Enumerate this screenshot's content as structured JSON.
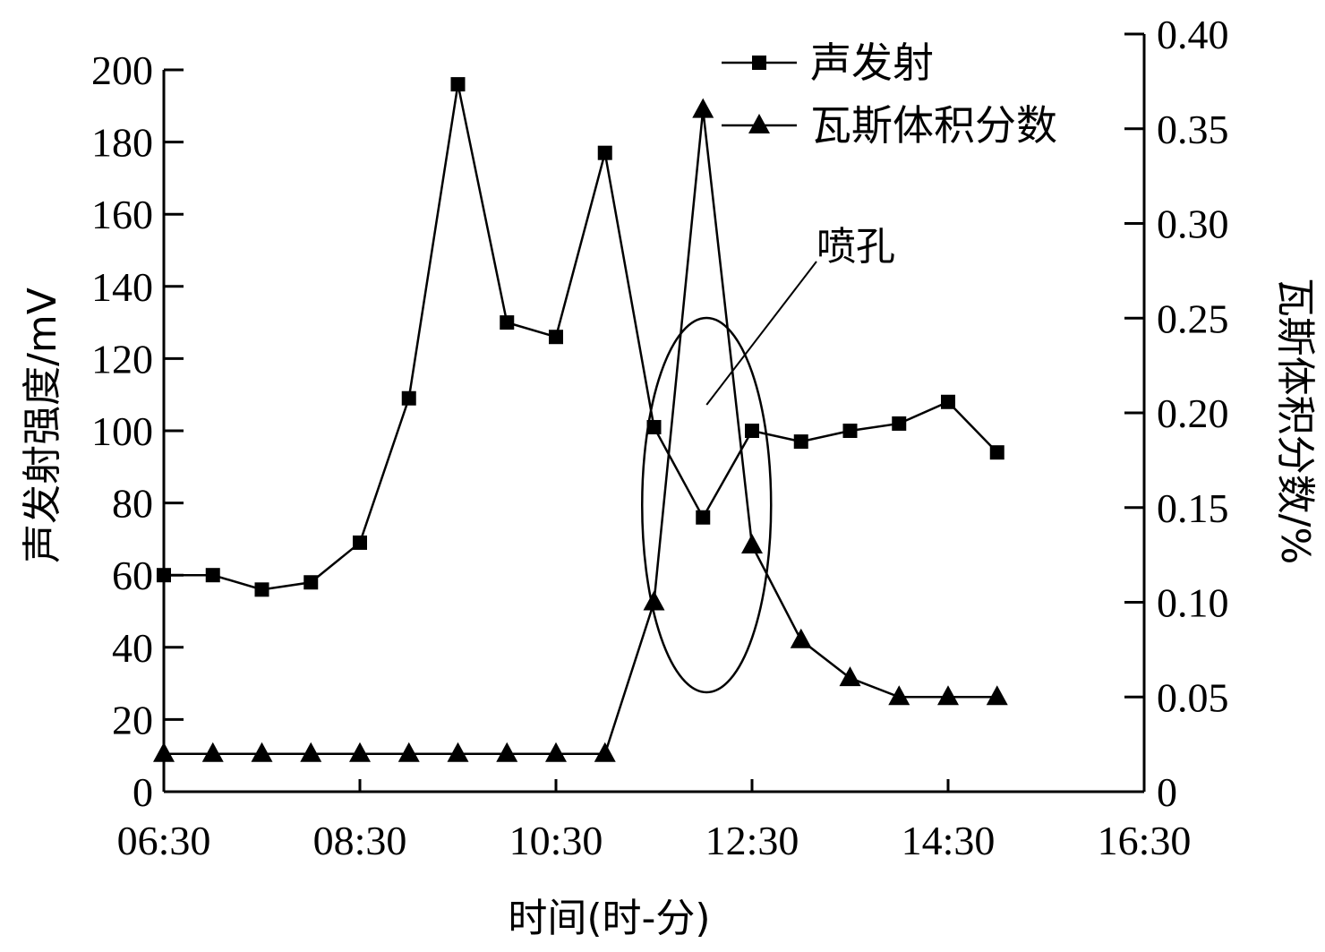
{
  "chart_data": {
    "type": "line",
    "xlabel": "时间(时-分)",
    "ylabel_left": "声发射强度/mV",
    "ylabel_right": "瓦斯体积分数/%",
    "x_ticks": [
      "06:30",
      "08:30",
      "10:30",
      "12:30",
      "14:30",
      "16:30"
    ],
    "y_left_ticks": [
      "0",
      "20",
      "40",
      "60",
      "80",
      "100",
      "120",
      "140",
      "160",
      "180",
      "200"
    ],
    "y_right_ticks": [
      "0",
      "0.05",
      "0.10",
      "0.15",
      "0.20",
      "0.25",
      "0.30",
      "0.35",
      "0.40"
    ],
    "x_range": [
      "06:30",
      "16:30"
    ],
    "y_left_range": [
      0,
      200
    ],
    "y_right_range": [
      0,
      0.4
    ],
    "x": [
      "06:30",
      "07:00",
      "07:30",
      "08:00",
      "08:30",
      "09:00",
      "09:30",
      "10:00",
      "10:30",
      "11:00",
      "11:30",
      "12:00",
      "12:30",
      "13:00",
      "13:30",
      "14:00",
      "14:30",
      "15:00"
    ],
    "series": [
      {
        "name": "声发射",
        "axis": "left",
        "marker": "square",
        "values": [
          60,
          60,
          56,
          58,
          69,
          109,
          196,
          130,
          126,
          177,
          101,
          76,
          100,
          97,
          100,
          102,
          108,
          94
        ]
      },
      {
        "name": "瓦斯体积分数",
        "axis": "right",
        "marker": "triangle",
        "values": [
          0.02,
          0.02,
          0.02,
          0.02,
          0.02,
          0.02,
          0.02,
          0.02,
          0.02,
          0.02,
          0.1,
          0.36,
          0.13,
          0.08,
          0.06,
          0.05,
          0.05,
          0.05
        ]
      }
    ],
    "annotations": [
      {
        "text": "喷孔",
        "near_x": "12:00"
      }
    ],
    "legend_placement": "top-right",
    "grid": false
  },
  "colors": {
    "line": "#000000",
    "background": "#ffffff"
  }
}
